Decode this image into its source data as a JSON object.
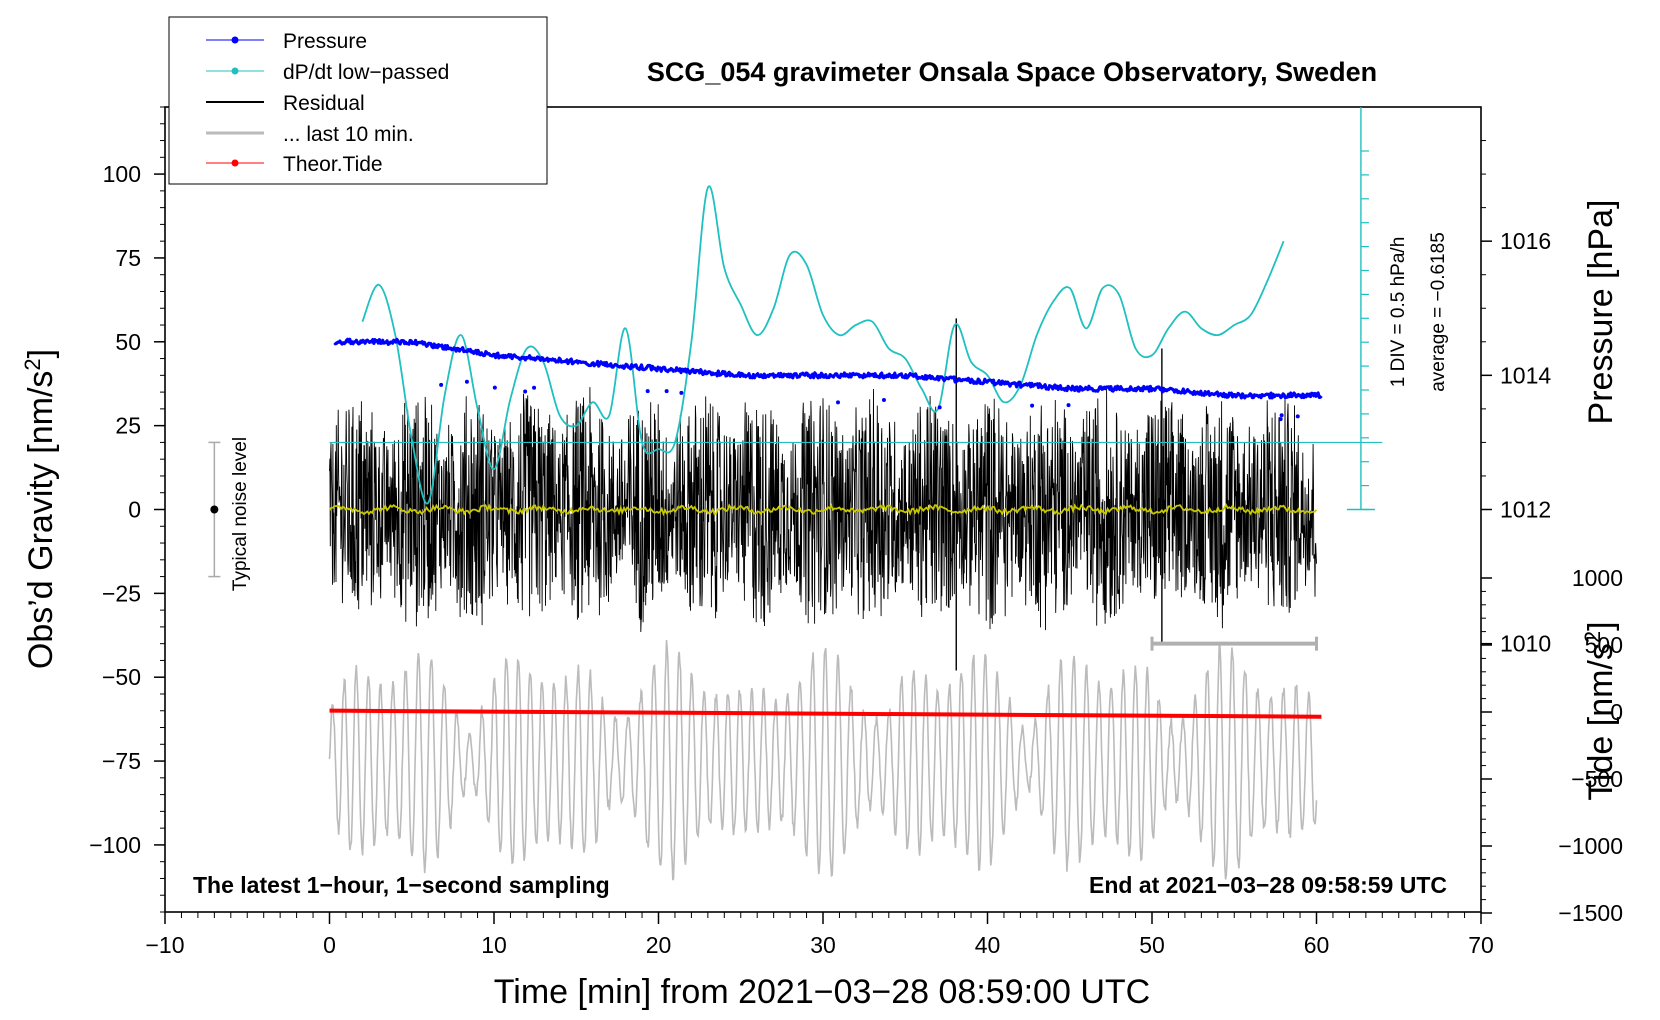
{
  "chart_data": {
    "type": "line",
    "title": "SCG_054 gravimeter Onsala Space Observatory, Sweden",
    "xlabel": "Time [min] from 2021−03−28 08:59:00 UTC",
    "ylabel": "Obs’d Gravity [nm/s²]",
    "ylabel_parts": {
      "main": "Obs’d Gravity [nm/s",
      "sup": "2",
      "end": "]"
    },
    "y2label": "Pressure [hPa]",
    "y3label_parts": {
      "main": "Tide [nm/s",
      "sup": "2",
      "end": "]"
    },
    "xlim": [
      -10,
      70
    ],
    "ylim": [
      -120,
      120
    ],
    "pressure_ylim": [
      1006.0,
      1018.0
    ],
    "tide_ylim": [
      -1500,
      1000
    ],
    "x_ticks": [
      -10,
      0,
      10,
      20,
      30,
      40,
      50,
      60,
      70
    ],
    "x_tick_labels": [
      "−10",
      "0",
      "10",
      "20",
      "30",
      "40",
      "50",
      "60",
      "70"
    ],
    "y_ticks": [
      -100,
      -75,
      -50,
      -25,
      0,
      25,
      50,
      75,
      100
    ],
    "y_tick_labels": [
      "−100",
      "−75",
      "−50",
      "−25",
      "0",
      "25",
      "50",
      "75",
      "100"
    ],
    "pressure_ticks": [
      1010,
      1012,
      1014,
      1016
    ],
    "pressure_tick_labels": [
      "1010",
      "1012",
      "1014",
      "1016"
    ],
    "tide_ticks": [
      -1500,
      -1000,
      -500,
      0,
      500,
      1000
    ],
    "tide_tick_labels": [
      "−1500",
      "−1000",
      "−500",
      "0",
      "500",
      "1000"
    ],
    "legend": [
      "Pressure",
      "dP/dt low−passed",
      "Residual",
      "... last 10 min.",
      "Theor.Tide"
    ],
    "legend_position": "top-left",
    "series": [
      {
        "name": "Pressure",
        "color": "#0000ff",
        "x": [
          0,
          5,
          10,
          15,
          20,
          25,
          30,
          35,
          40,
          45,
          50,
          55,
          60
        ],
        "values": [
          1014.5,
          1014.5,
          1014.3,
          1014.2,
          1014.1,
          1014.0,
          1014.0,
          1014.0,
          1013.9,
          1013.8,
          1013.8,
          1013.7,
          1013.7
        ]
      },
      {
        "name": "dP/dt low−passed",
        "color": "#20c0c0",
        "x": [
          2,
          3,
          4,
          5,
          6,
          7,
          8,
          9,
          10,
          11,
          12,
          13,
          14,
          15,
          16,
          17,
          18,
          19,
          20,
          21,
          22,
          23,
          24,
          25,
          26,
          27,
          28,
          29,
          30,
          31,
          32,
          33,
          34,
          35,
          36,
          37,
          38,
          39,
          40,
          41,
          42,
          43,
          44,
          45,
          46,
          47,
          48,
          49,
          50,
          51,
          52,
          53,
          54,
          55,
          56,
          57,
          58
        ],
        "values": [
          56,
          67,
          52,
          21,
          2,
          34,
          52,
          30,
          12,
          33,
          48,
          44,
          28,
          25,
          32,
          28,
          54,
          20,
          18,
          20,
          50,
          96,
          72,
          61,
          52,
          60,
          76,
          73,
          58,
          52,
          55,
          56,
          48,
          45,
          36,
          30,
          55,
          44,
          40,
          32,
          37,
          52,
          62,
          66,
          54,
          66,
          64,
          48,
          46,
          54,
          59,
          54,
          52,
          55,
          58,
          68,
          80
        ]
      },
      {
        "name": "Residual",
        "color": "#000000",
        "x_range": [
          0,
          60
        ],
        "amplitude": 25,
        "spikes": [
          {
            "x": 50.6,
            "values": [
              -40,
              48
            ]
          },
          {
            "x": 38.1,
            "values": [
              -48,
              57
            ]
          }
        ]
      },
      {
        "name": "... last 10 min.",
        "color": "#bbbbbb",
        "x_range": [
          0,
          60
        ],
        "center": -75,
        "amplitude": 25,
        "period": 0.75
      },
      {
        "name": "Theor.Tide",
        "color": "#ff0000",
        "x": [
          0,
          60.3
        ],
        "values": [
          10,
          -35
        ]
      }
    ],
    "pressure_reference_line": 1013.0,
    "scale_bar": {
      "label": "1 DIV = 0.5 hPa/h",
      "average": "average = −0.6185",
      "ticks_range": [
        -100,
        120
      ],
      "tick_step_hPa": 0.5
    },
    "noise_bar": {
      "label": "Typical noise level",
      "x": -7,
      "center": 0,
      "range": [
        -20,
        20
      ]
    },
    "gray_bar": {
      "x_range": [
        50,
        60
      ],
      "y": -40
    },
    "annotations": {
      "bottom_left": "The latest 1−hour, 1−second sampling",
      "bottom_right": "End at 2021−03−28 09:58:59 UTC"
    }
  }
}
